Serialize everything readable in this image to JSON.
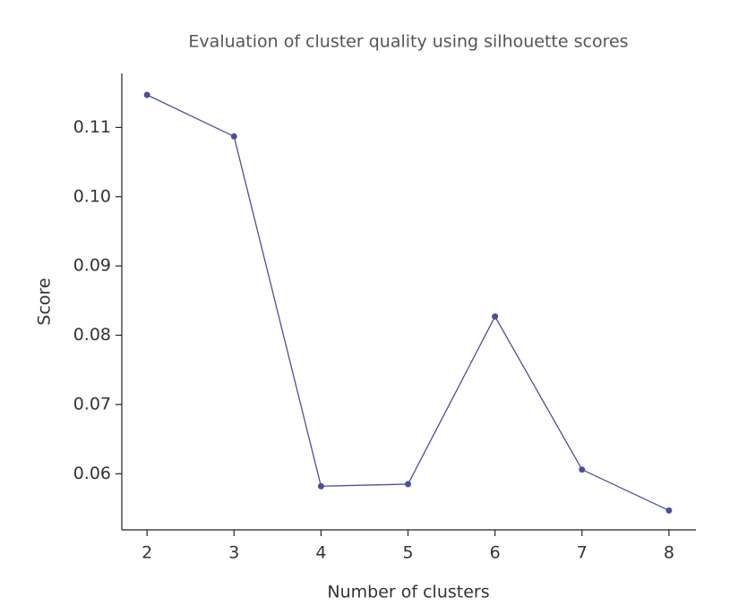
{
  "chart_data": {
    "type": "line",
    "title": "Evaluation of cluster quality using silhouette scores",
    "x_label": "Number of clusters",
    "y_label": "Score",
    "x": [
      2,
      3,
      4,
      5,
      6,
      7,
      8
    ],
    "series": [
      {
        "color": "#4b4f9e",
        "values": [
          0.1147,
          0.1087,
          0.0582,
          0.0585,
          0.0827,
          0.0606,
          0.0547
        ]
      }
    ],
    "xlim": [
      1.71,
      8.31
    ],
    "xticks": [
      2,
      3,
      4,
      5,
      6,
      7,
      8
    ],
    "ylim": [
      0.0519,
      0.1178
    ],
    "yticks": [
      0.06,
      0.07,
      0.08,
      0.09,
      {
        "value": 0.1,
        "label": "0.10"
      },
      0.11
    ],
    "grid": false
  }
}
